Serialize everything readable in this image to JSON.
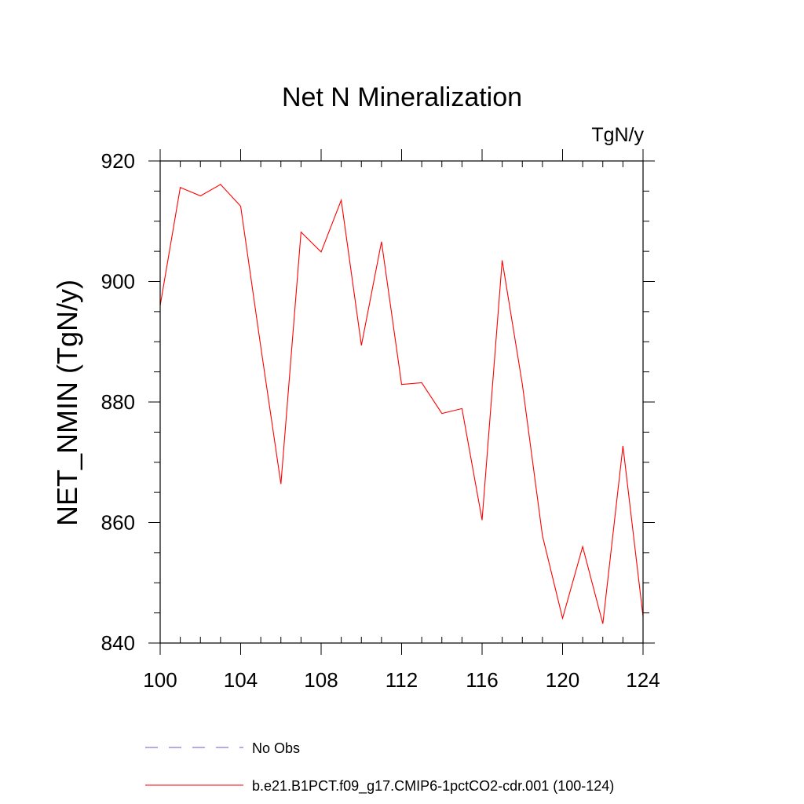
{
  "chart_data": {
    "type": "line",
    "title": "Net N Mineralization",
    "units": "TgN/y",
    "xlabel": "",
    "ylabel": "NET_NMIN  (TgN/y)",
    "xlim": [
      100,
      124
    ],
    "ylim": [
      840,
      920
    ],
    "x_ticks": [
      100,
      104,
      108,
      112,
      116,
      120,
      124
    ],
    "y_ticks": [
      840,
      860,
      880,
      900,
      920
    ],
    "grid": false,
    "legend_position": "bottom",
    "series": [
      {
        "name": "b.e21.B1PCT.f09_g17.CMIP6-1pctCO2-cdr.001 (100-124)",
        "color": "#ff0000",
        "style": "solid",
        "x": [
          100,
          101,
          102,
          103,
          104,
          105,
          106,
          107,
          108,
          109,
          110,
          111,
          112,
          113,
          114,
          115,
          116,
          117,
          118,
          119,
          120,
          121,
          122,
          123,
          124
        ],
        "y": [
          896,
          915.6,
          914.2,
          916.1,
          912.5,
          889.2,
          866.4,
          908.2,
          904.9,
          913.5,
          889.4,
          906.6,
          882.9,
          883.2,
          878.1,
          878.9,
          860.4,
          903.5,
          882.9,
          857.8,
          844.1,
          856,
          843.2,
          872.7,
          844.4
        ]
      }
    ],
    "legend": [
      {
        "label": "No Obs",
        "color": "#6a5acd",
        "style": "dashed"
      },
      {
        "label": "b.e21.B1PCT.f09_g17.CMIP6-1pctCO2-cdr.001 (100-124)",
        "color": "#ff0000",
        "style": "solid"
      }
    ]
  }
}
